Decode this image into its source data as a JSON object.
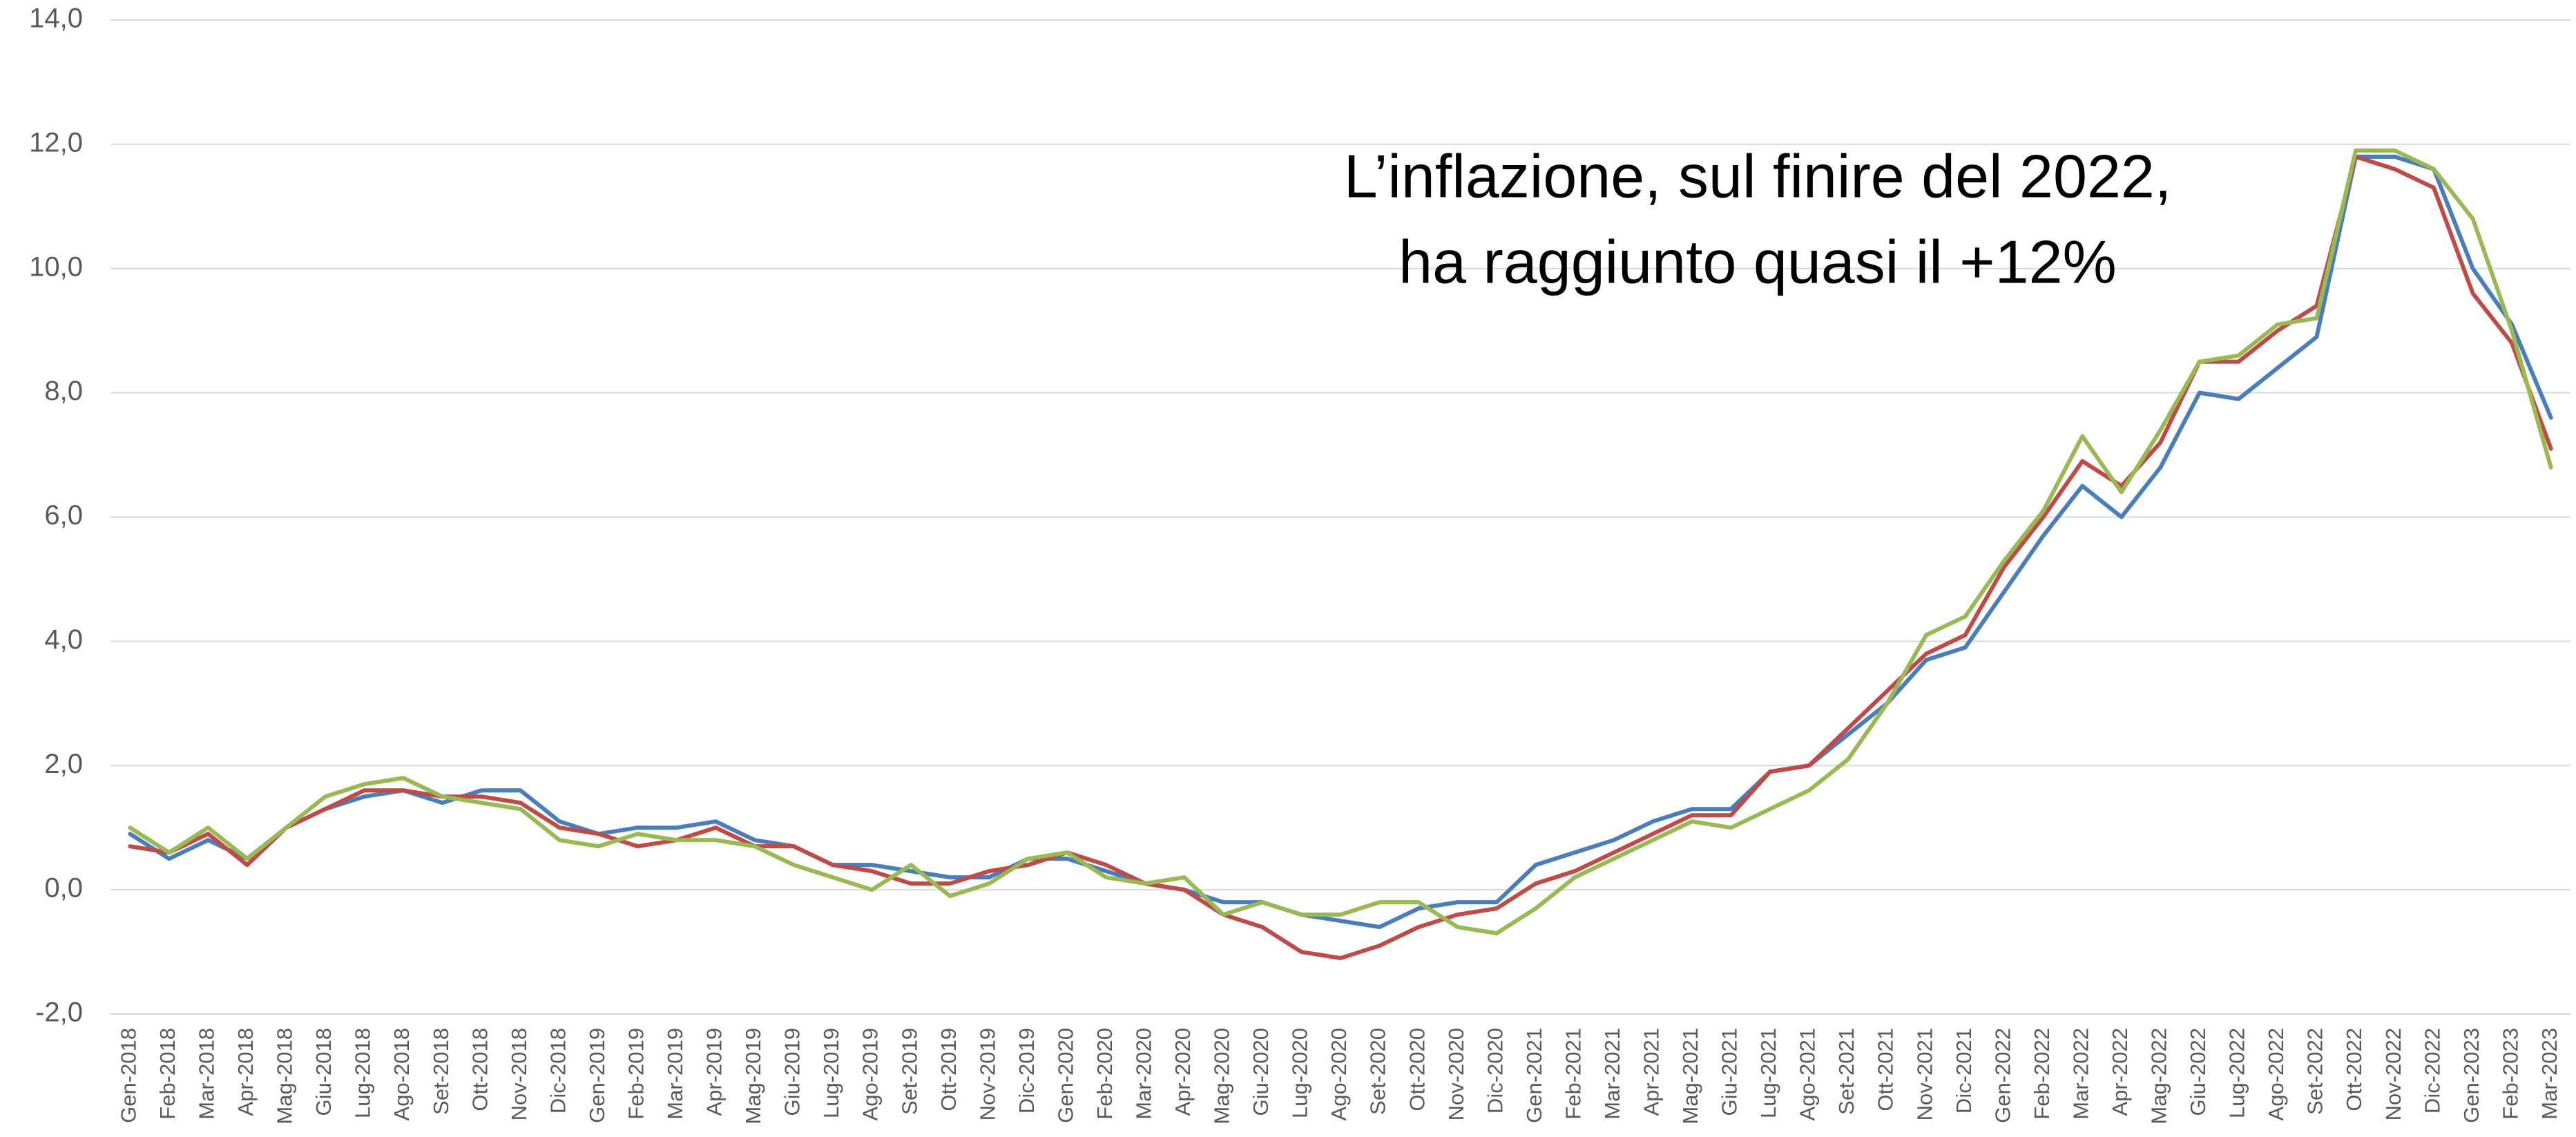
{
  "chart_data": {
    "type": "line",
    "annotation": [
      "L’inflazione, sul finire del 2022,",
      "ha raggiunto quasi il +12%"
    ],
    "categories": [
      "Gen-2018",
      "Feb-2018",
      "Mar-2018",
      "Apr-2018",
      "Mag-2018",
      "Giu-2018",
      "Lug-2018",
      "Ago-2018",
      "Set-2018",
      "Ott-2018",
      "Nov-2018",
      "Dic-2018",
      "Gen-2019",
      "Feb-2019",
      "Mar-2019",
      "Apr-2019",
      "Mag-2019",
      "Giu-2019",
      "Lug-2019",
      "Ago-2019",
      "Set-2019",
      "Ott-2019",
      "Nov-2019",
      "Dic-2019",
      "Gen-2020",
      "Feb-2020",
      "Mar-2020",
      "Apr-2020",
      "Mag-2020",
      "Giu-2020",
      "Lug-2020",
      "Ago-2020",
      "Set-2020",
      "Ott-2020",
      "Nov-2020",
      "Dic-2020",
      "Gen-2021",
      "Feb-2021",
      "Mar-2021",
      "Apr-2021",
      "Mag-2021",
      "Giu-2021",
      "Lug-2021",
      "Ago-2021",
      "Set-2021",
      "Ott-2021",
      "Nov-2021",
      "Dic-2021",
      "Gen-2022",
      "Feb-2022",
      "Mar-2022",
      "Apr-2022",
      "Mag-2022",
      "Giu-2022",
      "Lug-2022",
      "Ago-2022",
      "Set-2022",
      "Ott-2022",
      "Nov-2022",
      "Dic-2022",
      "Gen-2023",
      "Feb-2023",
      "Mar-2023"
    ],
    "series": [
      {
        "color": "#4a7ebb",
        "values": [
          0.9,
          0.5,
          0.8,
          0.5,
          1.0,
          1.3,
          1.5,
          1.6,
          1.4,
          1.6,
          1.6,
          1.1,
          0.9,
          1.0,
          1.0,
          1.1,
          0.8,
          0.7,
          0.4,
          0.4,
          0.3,
          0.2,
          0.2,
          0.5,
          0.5,
          0.3,
          0.1,
          0.0,
          -0.2,
          -0.2,
          -0.4,
          -0.5,
          -0.6,
          -0.3,
          -0.2,
          -0.2,
          0.4,
          0.6,
          0.8,
          1.1,
          1.3,
          1.3,
          1.9,
          2.0,
          2.5,
          3.0,
          3.7,
          3.9,
          4.8,
          5.7,
          6.5,
          6.0,
          6.8,
          8.0,
          7.9,
          8.4,
          8.9,
          11.8,
          11.8,
          11.6,
          10.0,
          9.1,
          7.6
        ]
      },
      {
        "color": "#be4b48",
        "values": [
          0.7,
          0.6,
          0.9,
          0.4,
          1.0,
          1.3,
          1.6,
          1.6,
          1.5,
          1.5,
          1.4,
          1.0,
          0.9,
          0.7,
          0.8,
          1.0,
          0.7,
          0.7,
          0.4,
          0.3,
          0.1,
          0.1,
          0.3,
          0.4,
          0.6,
          0.4,
          0.1,
          0.0,
          -0.4,
          -0.6,
          -1.0,
          -1.1,
          -0.9,
          -0.6,
          -0.4,
          -0.3,
          0.1,
          0.3,
          0.6,
          0.9,
          1.2,
          1.2,
          1.9,
          2.0,
          2.6,
          3.2,
          3.8,
          4.1,
          5.2,
          6.0,
          6.9,
          6.5,
          7.2,
          8.5,
          8.5,
          9.0,
          9.4,
          11.8,
          11.6,
          11.3,
          9.6,
          8.8,
          7.1
        ]
      },
      {
        "color": "#98b954",
        "values": [
          1.0,
          0.6,
          1.0,
          0.5,
          1.0,
          1.5,
          1.7,
          1.8,
          1.5,
          1.4,
          1.3,
          0.8,
          0.7,
          0.9,
          0.8,
          0.8,
          0.7,
          0.4,
          0.2,
          0.0,
          0.4,
          -0.1,
          0.1,
          0.5,
          0.6,
          0.2,
          0.1,
          0.2,
          -0.4,
          -0.2,
          -0.4,
          -0.4,
          -0.2,
          -0.2,
          -0.6,
          -0.7,
          -0.3,
          0.2,
          0.5,
          0.8,
          1.1,
          1.0,
          1.3,
          1.6,
          2.1,
          3.0,
          4.1,
          4.4,
          5.3,
          6.1,
          7.3,
          6.4,
          7.4,
          8.5,
          8.6,
          9.1,
          9.2,
          11.9,
          11.9,
          11.6,
          10.8,
          9.0,
          6.8
        ]
      }
    ],
    "ylim": [
      -2,
      14
    ],
    "yticks": [
      {
        "value": -2,
        "label": "-2,0"
      },
      {
        "value": 0,
        "label": "0,0"
      },
      {
        "value": 2,
        "label": "2,0"
      },
      {
        "value": 4,
        "label": "4,0"
      },
      {
        "value": 6,
        "label": "6,0"
      },
      {
        "value": 8,
        "label": "8,0"
      },
      {
        "value": 10,
        "label": "10,0"
      },
      {
        "value": 12,
        "label": "12,0"
      },
      {
        "value": 14,
        "label": "14,0"
      }
    ],
    "grid": true
  }
}
